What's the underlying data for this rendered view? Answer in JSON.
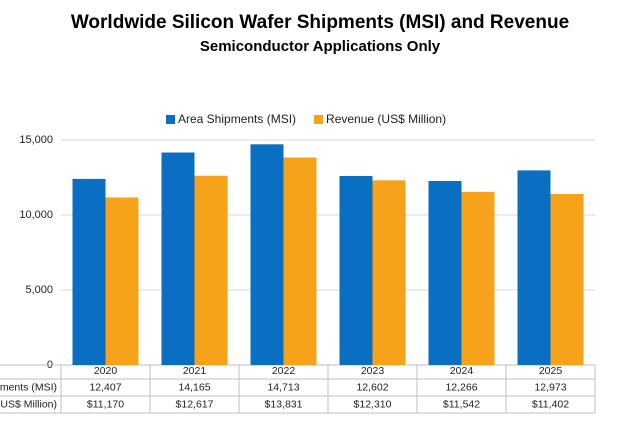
{
  "chart_data": {
    "type": "bar",
    "title": "Worldwide Silicon Wafer Shipments (MSI) and Revenue",
    "subtitle": "Semiconductor Applications Only",
    "categories": [
      "2020",
      "2021",
      "2022",
      "2023",
      "2024",
      "2025"
    ],
    "series": [
      {
        "name": "Area Shipments (MSI)",
        "color": "#0a6fc2",
        "values": [
          12407,
          14165,
          14713,
          12602,
          12266,
          12973
        ],
        "value_labels": [
          "12,407",
          "14,165",
          "14,713",
          "12,602",
          "12,266",
          "12,973"
        ]
      },
      {
        "name": "Revenue (US$ Million)",
        "color": "#f7a21b",
        "values": [
          11170,
          12617,
          13831,
          12310,
          11542,
          11402
        ],
        "value_labels": [
          "$11,170",
          "$12,617",
          "$13,831",
          "$12,310",
          "$11,542",
          "$11,402"
        ]
      }
    ],
    "ylim": [
      0,
      15000
    ],
    "yticks": [
      0,
      {
        "value": 5000,
        "label": "5,000"
      },
      {
        "value": 10000,
        "label": "10,000"
      },
      {
        "value": 15000,
        "label": "15,000"
      }
    ],
    "grid": true,
    "legend": "top"
  }
}
